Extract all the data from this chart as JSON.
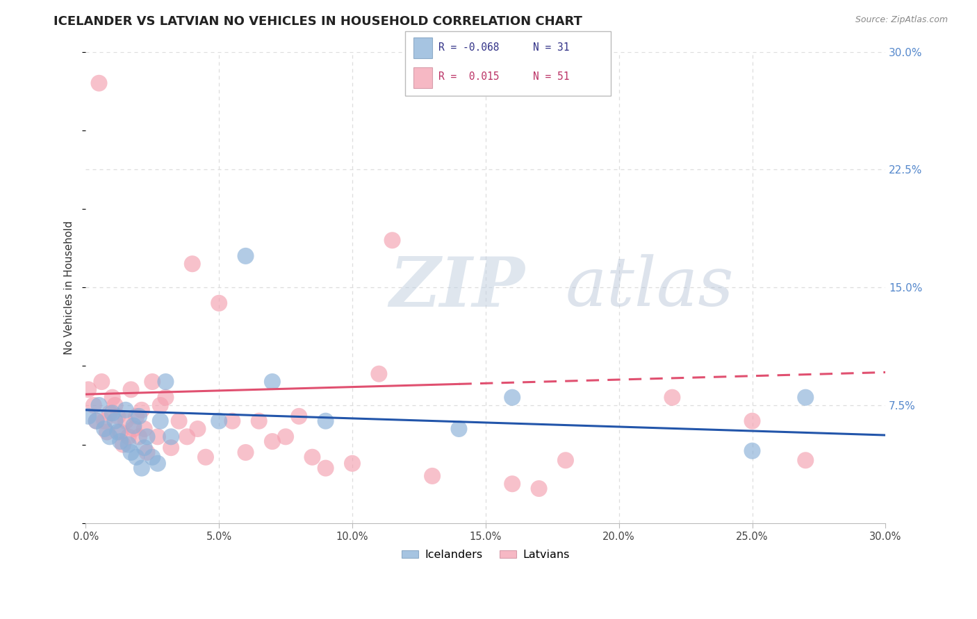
{
  "title": "ICELANDER VS LATVIAN NO VEHICLES IN HOUSEHOLD CORRELATION CHART",
  "source": "Source: ZipAtlas.com",
  "ylabel": "No Vehicles in Household",
  "xlim": [
    0.0,
    0.3
  ],
  "ylim": [
    0.0,
    0.3
  ],
  "ytick_labels": [
    "7.5%",
    "15.0%",
    "22.5%",
    "30.0%"
  ],
  "ytick_vals": [
    0.075,
    0.15,
    0.225,
    0.3
  ],
  "xtick_vals": [
    0.0,
    0.05,
    0.1,
    0.15,
    0.2,
    0.25,
    0.3
  ],
  "xtick_labels": [
    "0.0%",
    "5.0%",
    "10.0%",
    "15.0%",
    "20.0%",
    "25.0%",
    "30.0%"
  ],
  "watermark_zip": "ZIP",
  "watermark_atlas": "atlas",
  "legend_icelander_R": "-0.068",
  "legend_icelander_N": "31",
  "legend_latvian_R": "0.015",
  "legend_latvian_N": "51",
  "icelander_color": "#89B0D8",
  "latvian_color": "#F4A0B0",
  "icelander_line_color": "#2255AA",
  "latvian_line_color": "#E05070",
  "background_color": "#FFFFFF",
  "grid_color": "#DDDDDD",
  "icelander_x": [
    0.001,
    0.004,
    0.005,
    0.007,
    0.009,
    0.01,
    0.011,
    0.012,
    0.013,
    0.015,
    0.016,
    0.017,
    0.018,
    0.019,
    0.02,
    0.021,
    0.022,
    0.023,
    0.025,
    0.027,
    0.028,
    0.03,
    0.032,
    0.05,
    0.06,
    0.07,
    0.09,
    0.14,
    0.16,
    0.25,
    0.27
  ],
  "icelander_y": [
    0.068,
    0.065,
    0.075,
    0.06,
    0.055,
    0.07,
    0.065,
    0.058,
    0.052,
    0.072,
    0.05,
    0.045,
    0.062,
    0.042,
    0.068,
    0.035,
    0.048,
    0.055,
    0.042,
    0.038,
    0.065,
    0.09,
    0.055,
    0.065,
    0.17,
    0.09,
    0.065,
    0.06,
    0.08,
    0.046,
    0.08
  ],
  "latvian_x": [
    0.001,
    0.003,
    0.004,
    0.005,
    0.006,
    0.007,
    0.008,
    0.009,
    0.01,
    0.011,
    0.012,
    0.013,
    0.014,
    0.015,
    0.016,
    0.017,
    0.018,
    0.019,
    0.02,
    0.021,
    0.022,
    0.023,
    0.025,
    0.027,
    0.028,
    0.03,
    0.032,
    0.035,
    0.038,
    0.04,
    0.042,
    0.045,
    0.05,
    0.055,
    0.06,
    0.065,
    0.07,
    0.075,
    0.08,
    0.085,
    0.09,
    0.1,
    0.11,
    0.115,
    0.13,
    0.16,
    0.17,
    0.18,
    0.22,
    0.25,
    0.27
  ],
  "latvian_y": [
    0.085,
    0.075,
    0.065,
    0.28,
    0.09,
    0.065,
    0.058,
    0.07,
    0.08,
    0.075,
    0.068,
    0.058,
    0.05,
    0.065,
    0.055,
    0.085,
    0.06,
    0.068,
    0.055,
    0.072,
    0.06,
    0.045,
    0.09,
    0.055,
    0.075,
    0.08,
    0.048,
    0.065,
    0.055,
    0.165,
    0.06,
    0.042,
    0.14,
    0.065,
    0.045,
    0.065,
    0.052,
    0.055,
    0.068,
    0.042,
    0.035,
    0.038,
    0.095,
    0.18,
    0.03,
    0.025,
    0.022,
    0.04,
    0.08,
    0.065,
    0.04
  ],
  "ice_line_x0": 0.0,
  "ice_line_y0": 0.072,
  "ice_line_x1": 0.3,
  "ice_line_y1": 0.056,
  "lat_line_x0": 0.0,
  "lat_line_y0": 0.082,
  "lat_line_x1": 0.3,
  "lat_line_y1": 0.096
}
